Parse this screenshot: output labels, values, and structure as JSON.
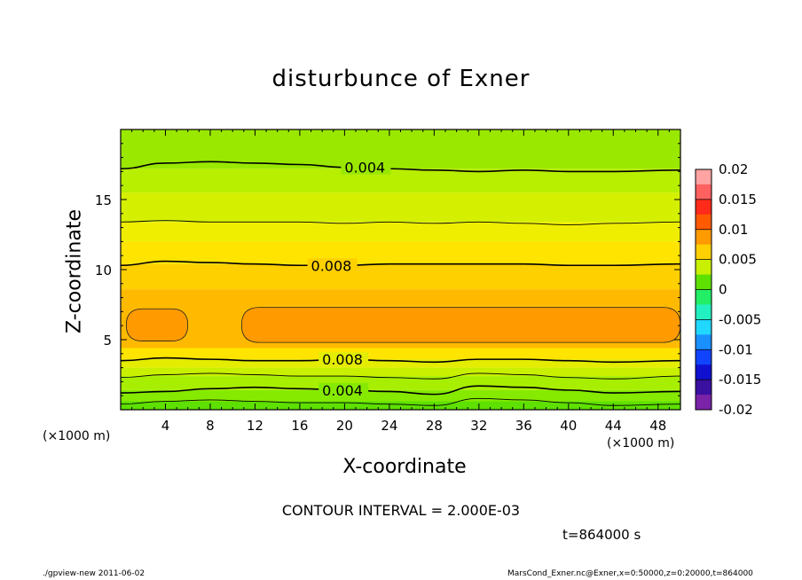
{
  "figure": {
    "title": "disturbunce of Exner",
    "contour_interval": "CONTOUR INTERVAL = 2.000E-03",
    "time_label": "t=864000 s",
    "footer_left": "./gpview-new   2011-06-02",
    "footer_right": "MarsCond_Exner.nc@Exner,x=0:50000,z=0:20000,t=864000",
    "x_unit_left": "(×1000 m)",
    "x_unit_right": "(×1000 m)"
  },
  "chart_data": {
    "type": "heatmap",
    "title": "disturbunce of Exner",
    "xlabel": "X-coordinate",
    "ylabel": "Z-coordinate",
    "xlim": [
      0,
      50
    ],
    "ylim": [
      0,
      20
    ],
    "x_ticks": [
      4,
      8,
      12,
      16,
      20,
      24,
      28,
      32,
      36,
      40,
      44,
      48
    ],
    "y_ticks": [
      5,
      10,
      15
    ],
    "contour_lines": [
      {
        "label": "0.004",
        "z": [
          17.2,
          17.6,
          17.7,
          17.6,
          17.5,
          17.3,
          17.2,
          17.1,
          17.0,
          17.1,
          17.0,
          17.0,
          17.1
        ],
        "label_x": 20
      },
      {
        "label": "",
        "z": [
          13.4,
          13.5,
          13.4,
          13.4,
          13.4,
          13.3,
          13.4,
          13.3,
          13.4,
          13.3,
          13.2,
          13.3,
          13.4
        ],
        "label_x": null
      },
      {
        "label": "0.008",
        "z": [
          10.3,
          10.6,
          10.5,
          10.4,
          10.3,
          10.3,
          10.4,
          10.4,
          10.4,
          10.4,
          10.3,
          10.3,
          10.4
        ],
        "label_x": 17
      },
      {
        "label": "0.008",
        "z": [
          3.5,
          3.7,
          3.6,
          3.5,
          3.5,
          3.6,
          3.5,
          3.4,
          3.6,
          3.6,
          3.5,
          3.4,
          3.5
        ],
        "label_x": 18
      },
      {
        "label": "",
        "z": [
          2.3,
          2.5,
          2.6,
          2.5,
          2.4,
          2.4,
          2.3,
          2.2,
          2.6,
          2.5,
          2.3,
          2.2,
          2.4
        ],
        "label_x": null
      },
      {
        "label": "0.004",
        "z": [
          1.2,
          1.3,
          1.5,
          1.6,
          1.5,
          1.4,
          1.3,
          1.1,
          1.7,
          1.6,
          1.4,
          1.2,
          1.3
        ],
        "label_x": 18
      },
      {
        "label": "",
        "z": [
          0.4,
          0.6,
          0.7,
          0.6,
          0.5,
          0.5,
          0.4,
          0.3,
          0.8,
          0.7,
          0.5,
          0.3,
          0.4
        ],
        "label_x": null
      }
    ],
    "contour_x": [
      0,
      4,
      8,
      12,
      16,
      20,
      24,
      28,
      32,
      36,
      40,
      44,
      50
    ],
    "colorbar": {
      "ticks": [
        "0.02",
        "0.015",
        "0.01",
        "0.005",
        "0",
        "-0.005",
        "-0.01",
        "-0.015",
        "-0.02"
      ],
      "levels": [
        {
          "range": [
            0.0175,
            0.02
          ],
          "color": "#ffa3a3"
        },
        {
          "range": [
            0.015,
            0.0175
          ],
          "color": "#ff6060"
        },
        {
          "range": [
            0.0125,
            0.015
          ],
          "color": "#ff2a1a"
        },
        {
          "range": [
            0.01,
            0.0125
          ],
          "color": "#ff5a00"
        },
        {
          "range": [
            0.0075,
            0.01
          ],
          "color": "#ff9a00"
        },
        {
          "range": [
            0.005,
            0.0075
          ],
          "color": "#ffd000"
        },
        {
          "range": [
            0.0025,
            0.005
          ],
          "color": "#c8f000"
        },
        {
          "range": [
            0.0,
            0.0025
          ],
          "color": "#5ee000"
        },
        {
          "range": [
            -0.0025,
            0.0
          ],
          "color": "#22ee66"
        },
        {
          "range": [
            -0.005,
            -0.0025
          ],
          "color": "#22f0c0"
        },
        {
          "range": [
            -0.0075,
            -0.005
          ],
          "color": "#20d8ff"
        },
        {
          "range": [
            -0.01,
            -0.0075
          ],
          "color": "#1a90ff"
        },
        {
          "range": [
            -0.0125,
            -0.01
          ],
          "color": "#1044ff"
        },
        {
          "range": [
            -0.015,
            -0.0125
          ],
          "color": "#1010d0"
        },
        {
          "range": [
            -0.0175,
            -0.015
          ],
          "color": "#3a10a0"
        },
        {
          "range": [
            -0.02,
            -0.0175
          ],
          "color": "#7a22a8"
        }
      ]
    },
    "bands": [
      {
        "z": [
          0.0,
          0.6
        ],
        "value": 0.001,
        "color": "#5ee000"
      },
      {
        "z": [
          0.6,
          1.4
        ],
        "value": 0.0025,
        "color": "#86ea00"
      },
      {
        "z": [
          1.4,
          2.4
        ],
        "value": 0.0035,
        "color": "#a8ee00"
      },
      {
        "z": [
          2.4,
          3.0
        ],
        "value": 0.0045,
        "color": "#c8f000"
      },
      {
        "z": [
          3.0,
          3.6
        ],
        "value": 0.0055,
        "color": "#e4ec00"
      },
      {
        "z": [
          3.6,
          4.4
        ],
        "value": 0.0065,
        "color": "#ffe400"
      },
      {
        "z": [
          4.4,
          8.6
        ],
        "value": 0.0085,
        "color": "#ffba00"
      },
      {
        "z": [
          8.6,
          10.4
        ],
        "value": 0.0075,
        "color": "#ffd000"
      },
      {
        "z": [
          10.4,
          12.0
        ],
        "value": 0.007,
        "color": "#ffe400"
      },
      {
        "z": [
          12.0,
          13.4
        ],
        "value": 0.006,
        "color": "#f0ee00"
      },
      {
        "z": [
          13.4,
          15.5
        ],
        "value": 0.005,
        "color": "#d4f000"
      },
      {
        "z": [
          15.5,
          17.2
        ],
        "value": 0.0045,
        "color": "#b8ee00"
      },
      {
        "z": [
          17.2,
          20.0
        ],
        "value": 0.003,
        "color": "#9ae800"
      }
    ],
    "cores": [
      {
        "value": 0.0095,
        "color": "#ff9a00",
        "x": [
          0.5,
          6.0
        ],
        "z": [
          4.9,
          7.2
        ]
      },
      {
        "value": 0.0095,
        "color": "#ff9a00",
        "x": [
          10.8,
          50
        ],
        "z": [
          4.8,
          7.3
        ]
      }
    ]
  }
}
